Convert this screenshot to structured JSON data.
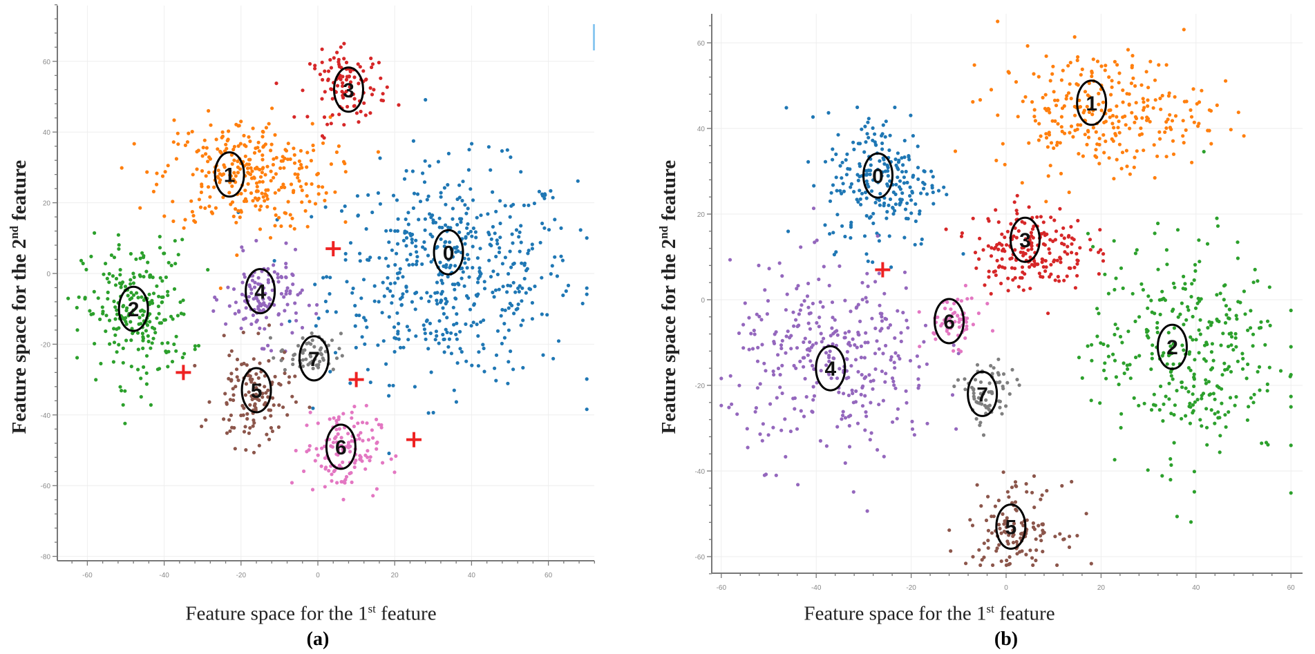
{
  "chart_data": [
    {
      "type": "scatter",
      "panel": "(a)",
      "xlabel": {
        "prefix": "Feature space for the 1",
        "sup": "st",
        "suffix": " feature"
      },
      "ylabel": {
        "prefix": "Feature space for the 2",
        "sup": "nd",
        "suffix": "  feature"
      },
      "xticks": [
        -60,
        -40,
        -20,
        0,
        20,
        40,
        60
      ],
      "yticks": [
        60,
        40,
        20,
        0,
        -20,
        -40,
        -60,
        -80
      ],
      "xlim": [
        -67,
        72
      ],
      "ylim": [
        -81,
        77
      ],
      "grid": true,
      "clusters": [
        {
          "label": "0",
          "color": "#1f77b4",
          "center": [
            35,
            0
          ],
          "sd": [
            16,
            15
          ],
          "n": 520,
          "label_pos": [
            34,
            6
          ]
        },
        {
          "label": "1",
          "color": "#ff7f0e",
          "center": [
            -19,
            28
          ],
          "sd": [
            11,
            8
          ],
          "n": 300,
          "label_pos": [
            -23,
            28
          ]
        },
        {
          "label": "2",
          "color": "#2ca02c",
          "center": [
            -47,
            -11
          ],
          "sd": [
            7,
            10
          ],
          "n": 230,
          "label_pos": [
            -48,
            -10
          ]
        },
        {
          "label": "3",
          "color": "#d62728",
          "center": [
            8,
            53
          ],
          "sd": [
            5,
            5
          ],
          "n": 110,
          "label_pos": [
            8,
            52
          ]
        },
        {
          "label": "4",
          "color": "#9467bd",
          "center": [
            -14,
            -7
          ],
          "sd": [
            5,
            6
          ],
          "n": 130,
          "label_pos": [
            -15,
            -5
          ]
        },
        {
          "label": "5",
          "color": "#8c564b",
          "center": [
            -17,
            -35
          ],
          "sd": [
            5,
            7
          ],
          "n": 130,
          "label_pos": [
            -16,
            -33
          ]
        },
        {
          "label": "6",
          "color": "#e377c2",
          "center": [
            6,
            -50
          ],
          "sd": [
            5,
            6
          ],
          "n": 130,
          "label_pos": [
            6,
            -49
          ]
        },
        {
          "label": "7",
          "color": "#7f7f7f",
          "center": [
            -2,
            -23
          ],
          "sd": [
            4,
            3
          ],
          "n": 60,
          "label_pos": [
            -1,
            -24
          ]
        }
      ],
      "centroid_markers": [
        [
          4,
          7
        ],
        [
          -35,
          -28
        ],
        [
          10,
          -30
        ],
        [
          25,
          -47
        ]
      ],
      "marker_color": "#ee2222"
    },
    {
      "type": "scatter",
      "panel": "(b)",
      "xlabel": {
        "prefix": "Feature space for the 1",
        "sup": "st",
        "suffix": " feature"
      },
      "ylabel": {
        "prefix": "Feature space for the 2",
        "sup": "nd",
        "suffix": "  feature"
      },
      "xticks": [
        -60,
        -40,
        -20,
        0,
        20,
        40,
        60
      ],
      "yticks": [
        60,
        40,
        20,
        0,
        -20,
        -40,
        -60
      ],
      "xlim": [
        -62,
        62
      ],
      "ylim": [
        -64,
        67
      ],
      "grid": true,
      "clusters": [
        {
          "label": "0",
          "color": "#1f77b4",
          "center": [
            -26,
            28
          ],
          "sd": [
            6,
            8
          ],
          "n": 230,
          "label_pos": [
            -27,
            29
          ]
        },
        {
          "label": "1",
          "color": "#ff7f0e",
          "center": [
            20,
            44
          ],
          "sd": [
            11,
            7
          ],
          "n": 280,
          "label_pos": [
            18,
            46
          ]
        },
        {
          "label": "2",
          "color": "#2ca02c",
          "center": [
            38,
            -12
          ],
          "sd": [
            10,
            13
          ],
          "n": 330,
          "label_pos": [
            35,
            -11
          ]
        },
        {
          "label": "3",
          "color": "#d62728",
          "center": [
            5,
            12
          ],
          "sd": [
            6,
            5
          ],
          "n": 200,
          "label_pos": [
            4,
            14
          ]
        },
        {
          "label": "4",
          "color": "#9467bd",
          "center": [
            -36,
            -15
          ],
          "sd": [
            11,
            11
          ],
          "n": 330,
          "label_pos": [
            -37,
            -16
          ]
        },
        {
          "label": "5",
          "color": "#8c564b",
          "center": [
            2,
            -53
          ],
          "sd": [
            5,
            5
          ],
          "n": 130,
          "label_pos": [
            1,
            -53
          ]
        },
        {
          "label": "6",
          "color": "#e377c2",
          "center": [
            -11,
            -5
          ],
          "sd": [
            3,
            3
          ],
          "n": 60,
          "label_pos": [
            -12,
            -5
          ]
        },
        {
          "label": "7",
          "color": "#7f7f7f",
          "center": [
            -4,
            -22
          ],
          "sd": [
            3,
            4
          ],
          "n": 70,
          "label_pos": [
            -5,
            -22
          ]
        }
      ],
      "centroid_markers": [
        [
          -26,
          7
        ]
      ],
      "marker_color": "#ee2222"
    }
  ]
}
